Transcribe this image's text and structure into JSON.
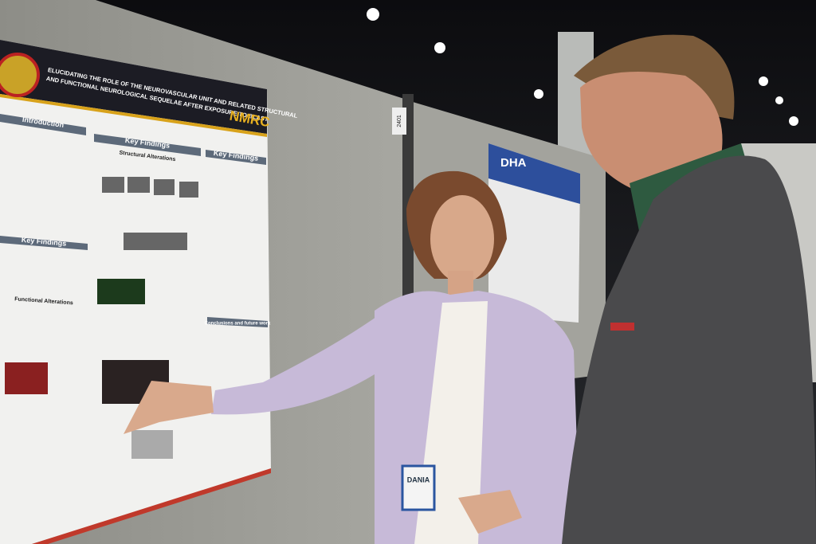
{
  "poster": {
    "title_lines": [
      "ELUCIDATING THE ROLE OF THE NEUROVASCULAR UNIT AND RELATED STRUCTURAL",
      "AND FUNCTIONAL NEUROLOGICAL SEQUELAE AFTER EXPOSURE TO BLAST"
    ],
    "logo": "NMRC",
    "sections": {
      "introduction": "Introduction",
      "key_findings_left": "Key Findings",
      "key_findings_center": "Key Findings",
      "structural": "Structural Alterations",
      "key_findings_right": "Key Findings",
      "functional": "Functional Alterations",
      "conclusions": "Conclusions and future work"
    }
  },
  "booth_number": "2401",
  "second_poster": {
    "logo": "DHA"
  },
  "badge": {
    "name": "DANIA"
  }
}
